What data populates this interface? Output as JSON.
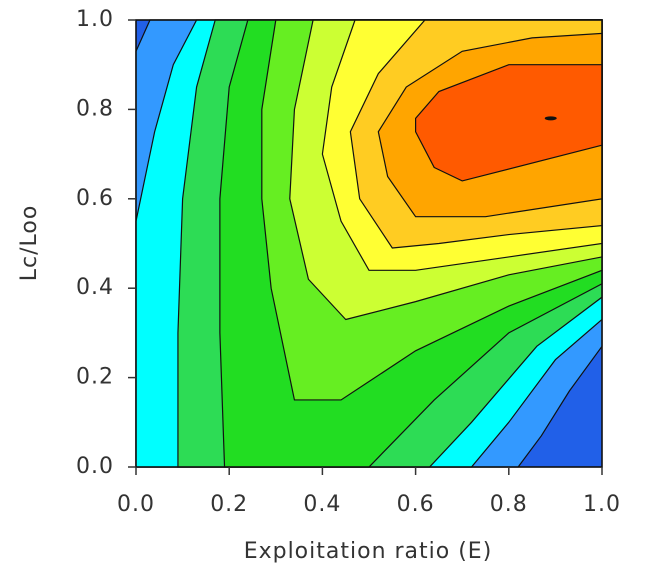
{
  "chart_data": {
    "type": "contour",
    "xlabel": "Exploitation ratio (E)",
    "ylabel": "Lc/Loo",
    "xlim": [
      0,
      1
    ],
    "ylim": [
      0,
      1
    ],
    "xticks": [
      {
        "value": 0,
        "label": "0.0"
      },
      0.2,
      0.4,
      0.6,
      0.8,
      {
        "value": 1,
        "label": "1.0"
      }
    ],
    "yticks": [
      {
        "value": 0,
        "label": "0.0"
      },
      0.2,
      0.4,
      0.6,
      0.8,
      {
        "value": 1,
        "label": "1.0"
      }
    ],
    "bands": [
      {
        "color": "#2160e8",
        "x": [
          0,
          1,
          1,
          0
        ],
        "y": [
          0,
          0,
          1,
          1
        ]
      },
      {
        "color": "#3399ff",
        "x": [
          0,
          0.82,
          0.87,
          0.93,
          1,
          1,
          0.03,
          0
        ],
        "y": [
          0,
          0,
          0.07,
          0.17,
          0.27,
          1,
          1,
          0.93
        ]
      },
      {
        "color": "#00ffff",
        "x": [
          0,
          0.72,
          0.8,
          0.9,
          1,
          1,
          0.13,
          0.08,
          0.04,
          0
        ],
        "y": [
          0,
          0,
          0.1,
          0.24,
          0.33,
          1,
          1,
          0.9,
          0.75,
          0.55
        ]
      },
      {
        "color": "#2ddc55",
        "x": [
          0.09,
          0.63,
          0.72,
          0.86,
          1,
          1,
          0.17,
          0.13,
          0.1,
          0.09
        ],
        "y": [
          0,
          0,
          0.1,
          0.27,
          0.38,
          1,
          1,
          0.85,
          0.6,
          0.3
        ]
      },
      {
        "color": "#22dd22",
        "x": [
          0.19,
          0.5,
          0.64,
          0.8,
          1,
          1,
          0.24,
          0.2,
          0.18,
          0.18
        ],
        "y": [
          0,
          0,
          0.15,
          0.3,
          0.41,
          1,
          1,
          0.85,
          0.6,
          0.3
        ]
      },
      {
        "color": "#66ee22",
        "x": [
          0.34,
          0.44,
          0.6,
          0.8,
          1,
          1,
          0.3,
          0.27,
          0.27,
          0.29
        ],
        "y": [
          0.15,
          0.15,
          0.26,
          0.36,
          0.44,
          1,
          1,
          0.8,
          0.6,
          0.4
        ]
      },
      {
        "color": "#ccff33",
        "x": [
          0.45,
          0.6,
          0.8,
          1,
          1,
          0.38,
          0.34,
          0.33,
          0.37
        ],
        "y": [
          0.33,
          0.37,
          0.43,
          0.47,
          1,
          1,
          0.8,
          0.6,
          0.42
        ]
      },
      {
        "color": "#ffff33",
        "x": [
          0.5,
          0.6,
          0.8,
          1,
          1,
          0.47,
          0.42,
          0.4,
          0.44
        ],
        "y": [
          0.44,
          0.44,
          0.47,
          0.5,
          1,
          1,
          0.85,
          0.7,
          0.55
        ]
      },
      {
        "color": "#ffcc22",
        "x": [
          0.55,
          0.65,
          0.8,
          1,
          1,
          0.62,
          0.52,
          0.46,
          0.48
        ],
        "y": [
          0.49,
          0.5,
          0.52,
          0.54,
          1,
          1,
          0.88,
          0.75,
          0.6
        ]
      },
      {
        "color": "#ffa500",
        "x": [
          0.6,
          0.75,
          1,
          1,
          0.85,
          0.7,
          0.58,
          0.52,
          0.54
        ],
        "y": [
          0.56,
          0.56,
          0.6,
          0.97,
          0.96,
          0.93,
          0.85,
          0.75,
          0.65
        ]
      },
      {
        "color": "#ff5a00",
        "x": [
          0.64,
          0.7,
          1,
          1,
          0.8,
          0.65,
          0.6,
          0.6
        ],
        "y": [
          0.67,
          0.64,
          0.72,
          0.9,
          0.9,
          0.84,
          0.78,
          0.75
        ]
      }
    ],
    "marker": {
      "x": 0.89,
      "y": 0.78
    }
  }
}
